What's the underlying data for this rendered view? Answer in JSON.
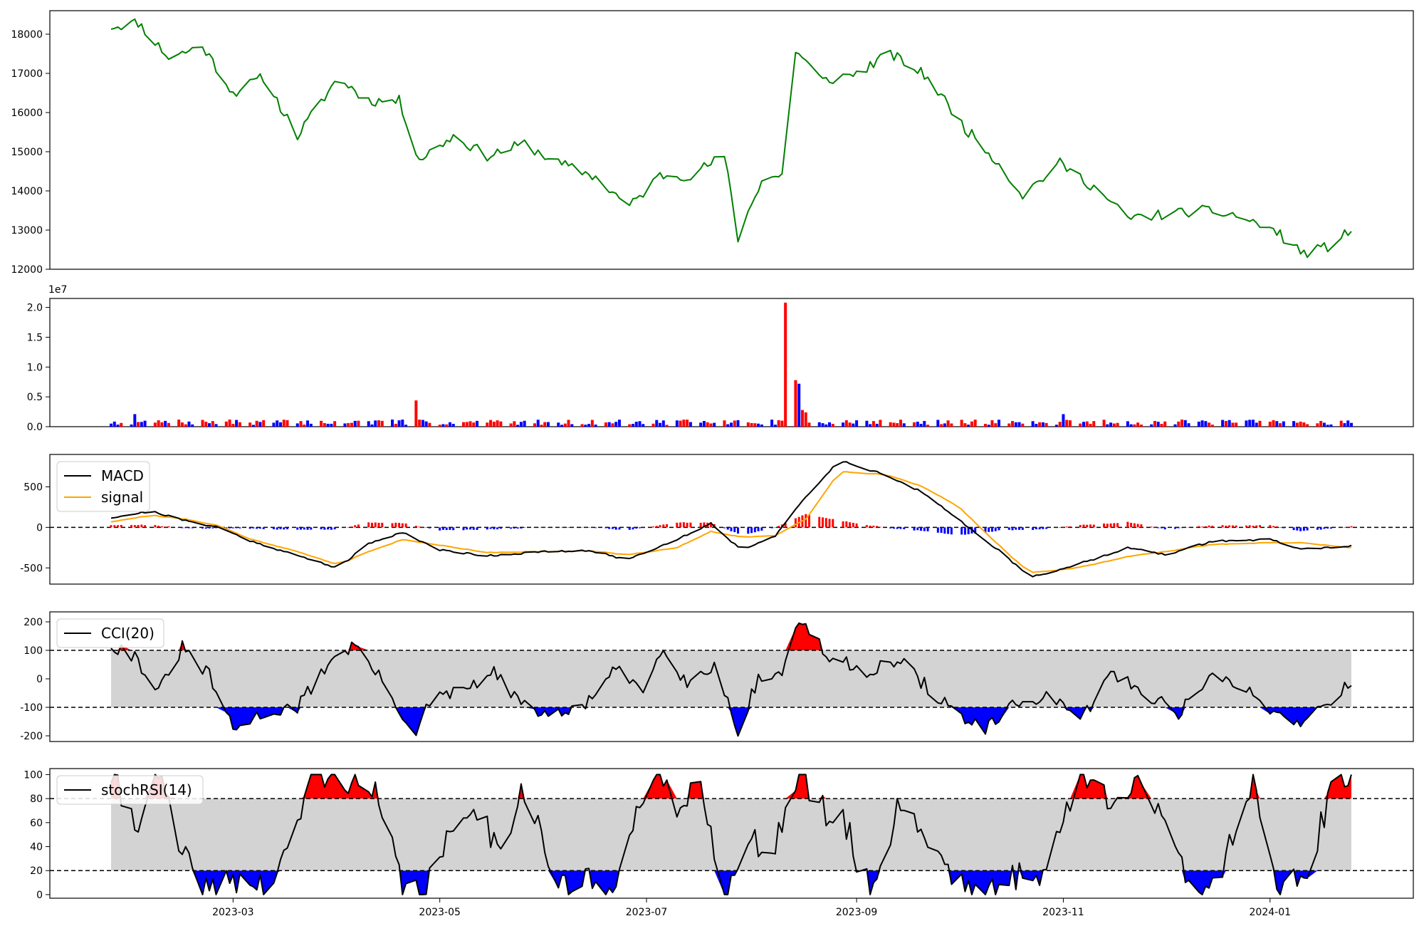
{
  "chart_data": [
    {
      "type": "line",
      "id": "price",
      "ylim": [
        12000,
        18600
      ],
      "yticks": [
        "12000",
        "13000",
        "14000",
        "15000",
        "16000",
        "17000",
        "18000"
      ],
      "series": [
        {
          "color": "#008000",
          "x": [
            "2023-01-24",
            "2023-02-01",
            "2023-02-10",
            "2023-02-20",
            "2023-03-01",
            "2023-03-10",
            "2023-03-20",
            "2023-04-01",
            "2023-04-10",
            "2023-04-19",
            "2023-04-25",
            "2023-05-05",
            "2023-05-15",
            "2023-05-26",
            "2023-06-05",
            "2023-06-15",
            "2023-06-26",
            "2023-07-05",
            "2023-07-14",
            "2023-07-24",
            "2023-07-28",
            "2023-08-04",
            "2023-08-10",
            "2023-08-14",
            "2023-08-22",
            "2023-09-01",
            "2023-09-11",
            "2023-09-22",
            "2023-10-03",
            "2023-10-11",
            "2023-10-20",
            "2023-10-31",
            "2023-11-10",
            "2023-11-20",
            "2023-12-01",
            "2023-12-11",
            "2023-12-21",
            "2024-01-02",
            "2024-01-11",
            "2024-01-19",
            "2024-01-25"
          ],
          "values": [
            18200,
            18300,
            17400,
            17700,
            16500,
            16900,
            15400,
            16900,
            16300,
            16300,
            14800,
            15400,
            14900,
            15200,
            14700,
            14400,
            13600,
            14400,
            14400,
            14900,
            12800,
            14300,
            14400,
            17600,
            16800,
            17000,
            17500,
            16900,
            15600,
            14900,
            13900,
            14700,
            14100,
            13300,
            13400,
            13500,
            13400,
            13000,
            12400,
            12600,
            13000
          ]
        }
      ]
    },
    {
      "type": "bar",
      "id": "volume",
      "ylim": [
        0,
        21500000
      ],
      "yticks": [
        "0.0",
        "0.5",
        "1.0",
        "1.5",
        "2.0"
      ],
      "exponent_label": "1e7",
      "colors": [
        "#ff0000",
        "#0000ff"
      ],
      "mark_values": [
        2.1,
        4.4,
        20.8,
        7.8,
        7.2,
        2.8,
        2.4,
        2.1
      ]
    },
    {
      "type": "line",
      "id": "macd",
      "ylim": [
        -700,
        900
      ],
      "yticks": [
        "-500",
        "0",
        "500"
      ],
      "reference_lines": [
        0
      ],
      "legend": [
        "MACD",
        "signal"
      ],
      "series": [
        {
          "name": "MACD",
          "color": "#000000",
          "x": [
            "2023-01-24",
            "2023-02-05",
            "2023-02-15",
            "2023-02-25",
            "2023-03-05",
            "2023-03-20",
            "2023-04-01",
            "2023-04-10",
            "2023-04-20",
            "2023-05-01",
            "2023-05-15",
            "2023-06-01",
            "2023-06-15",
            "2023-06-25",
            "2023-07-10",
            "2023-07-20",
            "2023-07-29",
            "2023-08-08",
            "2023-08-17",
            "2023-08-27",
            "2023-09-10",
            "2023-09-20",
            "2023-10-01",
            "2023-10-15",
            "2023-10-22",
            "2023-11-05",
            "2023-11-20",
            "2023-12-01",
            "2023-12-15",
            "2024-01-01",
            "2024-01-10",
            "2024-01-25"
          ],
          "values": [
            120,
            200,
            80,
            0,
            -150,
            -350,
            -500,
            -200,
            -60,
            -280,
            -350,
            -300,
            -290,
            -400,
            -150,
            50,
            -280,
            -100,
            370,
            830,
            640,
            440,
            100,
            -350,
            -620,
            -460,
            -250,
            -340,
            -170,
            -150,
            -270,
            -230
          ]
        },
        {
          "name": "signal",
          "color": "#ffa500",
          "x": [
            "2023-01-24",
            "2023-02-05",
            "2023-02-15",
            "2023-02-25",
            "2023-03-05",
            "2023-03-20",
            "2023-04-01",
            "2023-04-10",
            "2023-04-20",
            "2023-05-01",
            "2023-05-15",
            "2023-06-01",
            "2023-06-15",
            "2023-06-25",
            "2023-07-10",
            "2023-07-20",
            "2023-07-29",
            "2023-08-08",
            "2023-08-17",
            "2023-08-27",
            "2023-09-10",
            "2023-09-20",
            "2023-10-01",
            "2023-10-15",
            "2023-10-22",
            "2023-11-05",
            "2023-11-20",
            "2023-12-01",
            "2023-12-15",
            "2024-01-01",
            "2024-01-10",
            "2024-01-25"
          ],
          "values": [
            70,
            150,
            100,
            20,
            -130,
            -300,
            -460,
            -300,
            -150,
            -220,
            -310,
            -300,
            -290,
            -340,
            -250,
            -50,
            -120,
            -100,
            100,
            690,
            650,
            510,
            260,
            -300,
            -560,
            -500,
            -360,
            -300,
            -210,
            -190,
            -190,
            -250
          ]
        }
      ],
      "histogram": {
        "positive_color": "#ff0000",
        "negative_color": "#0000ff"
      }
    },
    {
      "type": "area",
      "id": "cci",
      "ylim": [
        -220,
        235
      ],
      "yticks": [
        "-200",
        "-100",
        "0",
        "100",
        "200"
      ],
      "reference_lines": [
        -100,
        100
      ],
      "legend": [
        "CCI(20)"
      ],
      "colors": {
        "line": "#000000",
        "band": "#d3d3d3",
        "above": "#ff0000",
        "below": "#0000ff"
      },
      "series": [
        {
          "name": "CCI(20)",
          "x": [
            "2023-01-24",
            "2023-01-31",
            "2023-02-07",
            "2023-02-14",
            "2023-02-22",
            "2023-03-01",
            "2023-03-10",
            "2023-03-20",
            "2023-03-30",
            "2023-04-06",
            "2023-04-14",
            "2023-04-24",
            "2023-04-28",
            "2023-05-08",
            "2023-05-17",
            "2023-05-26",
            "2023-06-05",
            "2023-06-12",
            "2023-06-22",
            "2023-06-30",
            "2023-07-06",
            "2023-07-13",
            "2023-07-21",
            "2023-07-28",
            "2023-08-03",
            "2023-08-10",
            "2023-08-15",
            "2023-08-24",
            "2023-09-04",
            "2023-09-14",
            "2023-09-21",
            "2023-10-01",
            "2023-10-09",
            "2023-10-18",
            "2023-10-27",
            "2023-11-06",
            "2023-11-15",
            "2023-11-24",
            "2023-12-05",
            "2023-12-14",
            "2023-12-25",
            "2024-01-04",
            "2024-01-11",
            "2024-01-18",
            "2024-01-25"
          ],
          "values": [
            120,
            80,
            -50,
            110,
            10,
            -180,
            -120,
            -100,
            70,
            120,
            -10,
            -200,
            -80,
            -40,
            20,
            -100,
            -130,
            -100,
            30,
            -40,
            120,
            -20,
            50,
            -180,
            0,
            20,
            210,
            70,
            30,
            60,
            -20,
            -130,
            -180,
            -90,
            -60,
            -150,
            20,
            -40,
            -120,
            10,
            -40,
            -130,
            -150,
            -80,
            -10
          ]
        }
      ]
    },
    {
      "type": "area",
      "id": "stochrsi",
      "ylim": [
        -3,
        105
      ],
      "yticks": [
        "0",
        "20",
        "40",
        "60",
        "80",
        "100"
      ],
      "reference_lines": [
        20,
        80
      ],
      "legend": [
        "stochRSI(14)"
      ],
      "colors": {
        "line": "#000000",
        "band": "#d3d3d3",
        "above": "#ff0000",
        "below": "#0000ff"
      },
      "series": [
        {
          "name": "stochRSI(14)",
          "x": [
            "2023-01-24",
            "2023-01-31",
            "2023-02-07",
            "2023-02-14",
            "2023-02-22",
            "2023-03-01",
            "2023-03-10",
            "2023-03-17",
            "2023-03-24",
            "2023-04-03",
            "2023-04-12",
            "2023-04-21",
            "2023-04-28",
            "2023-05-10",
            "2023-05-18",
            "2023-05-26",
            "2023-06-05",
            "2023-06-13",
            "2023-06-20",
            "2023-06-26",
            "2023-07-04",
            "2023-07-12",
            "2023-07-17",
            "2023-07-24",
            "2023-08-01",
            "2023-08-08",
            "2023-08-15",
            "2023-08-22",
            "2023-08-29",
            "2023-09-05",
            "2023-09-14",
            "2023-09-22",
            "2023-10-02",
            "2023-10-11",
            "2023-10-20",
            "2023-10-27",
            "2023-11-06",
            "2023-11-14",
            "2023-11-23",
            "2023-12-01",
            "2023-12-11",
            "2023-12-19",
            "2023-12-27",
            "2024-01-04",
            "2024-01-12",
            "2024-01-20",
            "2024-01-25"
          ],
          "values": [
            100,
            60,
            100,
            30,
            0,
            15,
            5,
            30,
            100,
            100,
            80,
            0,
            10,
            80,
            40,
            90,
            5,
            10,
            0,
            60,
            95,
            70,
            100,
            0,
            40,
            45,
            100,
            70,
            55,
            0,
            80,
            45,
            10,
            0,
            20,
            20,
            100,
            80,
            100,
            50,
            0,
            30,
            100,
            0,
            20,
            90,
            100
          ]
        }
      ]
    }
  ],
  "x_axis": {
    "ticks": [
      "2023-03",
      "2023-05",
      "2023-07",
      "2023-09",
      "2023-11",
      "2024-01"
    ]
  }
}
